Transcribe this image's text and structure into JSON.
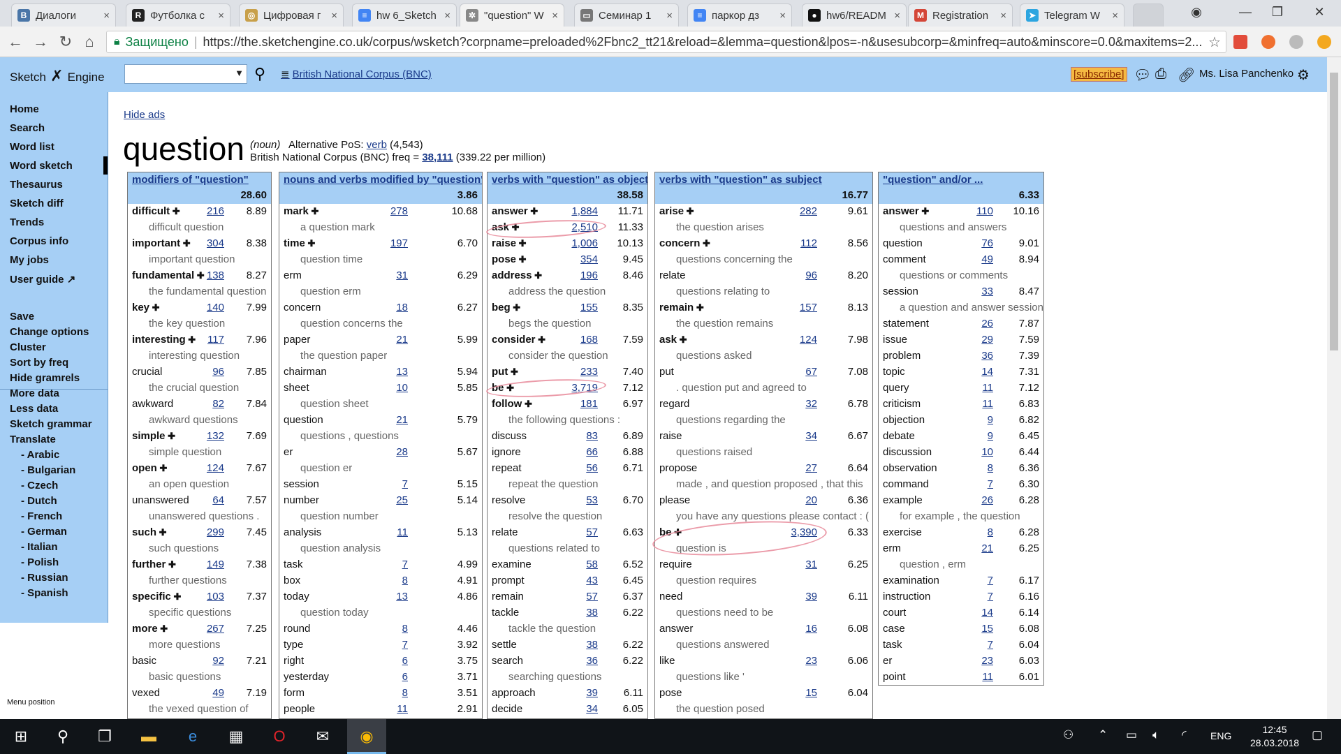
{
  "browser": {
    "tabs": [
      {
        "title": "Диалоги",
        "color": "#4a76a8",
        "glyph": "В"
      },
      {
        "title": "Футболка с",
        "color": "#222",
        "glyph": "R"
      },
      {
        "title": "Цифровая г",
        "color": "#c8a04a",
        "glyph": "◎"
      },
      {
        "title": "hw 6_Sketch",
        "color": "#4285f4",
        "glyph": "≡"
      },
      {
        "title": "\"question\" W",
        "color": "#888",
        "glyph": "✲"
      },
      {
        "title": "Семинар 1",
        "color": "#777",
        "glyph": "▭"
      },
      {
        "title": "паркор дз",
        "color": "#4285f4",
        "glyph": "≡"
      },
      {
        "title": "hw6/READM",
        "color": "#111",
        "glyph": "●"
      },
      {
        "title": "Registration",
        "color": "#d44638",
        "glyph": "M"
      },
      {
        "title": "Telegram W",
        "color": "#2ca5e0",
        "glyph": "➤"
      }
    ],
    "secure_label": "Защищено",
    "url": "https://the.sketchengine.co.uk/corpus/wsketch?corpname=preloaded%2Fbnc2_tt21&reload=&lemma=question&lpos=-n&usesubcorp=&minfreq=auto&minscore=0.0&maxitems=2..."
  },
  "header": {
    "logo_a": "Sketch",
    "logo_b": "Engine",
    "corpus_link": "British National Corpus (BNC)",
    "subscribe": "[subscribe]",
    "user": "Ms. Lisa Panchenko"
  },
  "sidebar": {
    "nav": [
      "Home",
      "Search",
      "Word list",
      "Word sketch",
      "Thesaurus",
      "Sketch diff",
      "Trends",
      "Corpus info",
      "My jobs",
      "User guide"
    ],
    "actions": [
      "Save",
      "Change options",
      "Cluster",
      "Sort by freq",
      "Hide gramrels",
      "More data",
      "Less data",
      "Sketch grammar",
      "Translate"
    ],
    "languages": [
      "- Arabic",
      "- Bulgarian",
      "- Czech",
      "- Dutch",
      "- French",
      "- German",
      "- Italian",
      "- Polish",
      "- Russian",
      "- Spanish"
    ],
    "menu_position": "Menu position"
  },
  "main": {
    "hide_ads": "Hide ads",
    "lemma": "question",
    "pos": "(noun)",
    "alt_pos_label": "Alternative PoS:",
    "alt_pos": "verb",
    "alt_pos_freq": "(4,543)",
    "freq_label": "British National Corpus (BNC) freq =",
    "freq": "38,111",
    "per_million": "(339.22 per million)"
  },
  "columns": [
    {
      "header": "modifiers of \"question\"",
      "score": "28.60",
      "rows": [
        {
          "w": "difficult",
          "plus": true,
          "f": "216",
          "s": "8.89",
          "ex": "difficult question"
        },
        {
          "w": "important",
          "plus": true,
          "f": "304",
          "s": "8.38",
          "ex": "important question"
        },
        {
          "w": "fundamental",
          "plus": true,
          "f": "138",
          "s": "8.27",
          "ex": "the fundamental question"
        },
        {
          "w": "key",
          "plus": true,
          "f": "140",
          "s": "7.99",
          "ex": "the key question"
        },
        {
          "w": "interesting",
          "plus": true,
          "f": "117",
          "s": "7.96",
          "ex": "interesting question"
        },
        {
          "w": "crucial",
          "plus": false,
          "f": "96",
          "s": "7.85",
          "ex": "the crucial question"
        },
        {
          "w": "awkward",
          "plus": false,
          "f": "82",
          "s": "7.84",
          "ex": "awkward questions"
        },
        {
          "w": "simple",
          "plus": true,
          "f": "132",
          "s": "7.69",
          "ex": "simple question"
        },
        {
          "w": "open",
          "plus": true,
          "f": "124",
          "s": "7.67",
          "ex": "an open question"
        },
        {
          "w": "unanswered",
          "plus": false,
          "f": "64",
          "s": "7.57",
          "ex": "unanswered questions ."
        },
        {
          "w": "such",
          "plus": true,
          "f": "299",
          "s": "7.45",
          "ex": "such questions"
        },
        {
          "w": "further",
          "plus": true,
          "f": "149",
          "s": "7.38",
          "ex": "further questions"
        },
        {
          "w": "specific",
          "plus": true,
          "f": "103",
          "s": "7.37",
          "ex": "specific questions"
        },
        {
          "w": "more",
          "plus": true,
          "f": "267",
          "s": "7.25",
          "ex": "more questions"
        },
        {
          "w": "basic",
          "plus": false,
          "f": "92",
          "s": "7.21",
          "ex": "basic questions"
        },
        {
          "w": "vexed",
          "plus": false,
          "f": "49",
          "s": "7.19",
          "ex": "the vexed question of"
        }
      ]
    },
    {
      "header": "nouns and verbs modified by \"question\"",
      "score": "3.86",
      "rows": [
        {
          "w": "mark",
          "plus": true,
          "f": "278",
          "s": "10.68",
          "ex": "a question mark"
        },
        {
          "w": "time",
          "plus": true,
          "f": "197",
          "s": "6.70",
          "ex": "question time"
        },
        {
          "w": "erm",
          "plus": false,
          "f": "31",
          "s": "6.29",
          "ex": "question erm"
        },
        {
          "w": "concern",
          "plus": false,
          "f": "18",
          "s": "6.27",
          "ex": "question concerns the"
        },
        {
          "w": "paper",
          "plus": false,
          "f": "21",
          "s": "5.99",
          "ex": "the question paper"
        },
        {
          "w": "chairman",
          "plus": false,
          "f": "13",
          "s": "5.94",
          "ex": null
        },
        {
          "w": "sheet",
          "plus": false,
          "f": "10",
          "s": "5.85",
          "ex": "question sheet"
        },
        {
          "w": "question",
          "plus": false,
          "f": "21",
          "s": "5.79",
          "ex": "questions , questions"
        },
        {
          "w": "er",
          "plus": false,
          "f": "28",
          "s": "5.67",
          "ex": "question er"
        },
        {
          "w": "session",
          "plus": false,
          "f": "7",
          "s": "5.15",
          "ex": null
        },
        {
          "w": "number",
          "plus": false,
          "f": "25",
          "s": "5.14",
          "ex": "question number"
        },
        {
          "w": "analysis",
          "plus": false,
          "f": "11",
          "s": "5.13",
          "ex": "question analysis"
        },
        {
          "w": "task",
          "plus": false,
          "f": "7",
          "s": "4.99",
          "ex": null
        },
        {
          "w": "box",
          "plus": false,
          "f": "8",
          "s": "4.91",
          "ex": null
        },
        {
          "w": "today",
          "plus": false,
          "f": "13",
          "s": "4.86",
          "ex": "question today"
        },
        {
          "w": "round",
          "plus": false,
          "f": "8",
          "s": "4.46",
          "ex": null
        },
        {
          "w": "type",
          "plus": false,
          "f": "7",
          "s": "3.92",
          "ex": null
        },
        {
          "w": "right",
          "plus": false,
          "f": "6",
          "s": "3.75",
          "ex": null
        },
        {
          "w": "yesterday",
          "plus": false,
          "f": "6",
          "s": "3.71",
          "ex": null
        },
        {
          "w": "form",
          "plus": false,
          "f": "8",
          "s": "3.51",
          "ex": null
        },
        {
          "w": "people",
          "plus": false,
          "f": "11",
          "s": "2.91",
          "ex": null
        }
      ]
    },
    {
      "header": "verbs with \"question\" as object",
      "score": "38.58",
      "rows": [
        {
          "w": "answer",
          "plus": true,
          "f": "1,884",
          "s": "11.71",
          "ex": null
        },
        {
          "w": "ask",
          "plus": true,
          "f": "2,510",
          "s": "11.33",
          "ex": null
        },
        {
          "w": "raise",
          "plus": true,
          "f": "1,006",
          "s": "10.13",
          "ex": null
        },
        {
          "w": "pose",
          "plus": true,
          "f": "354",
          "s": "9.45",
          "ex": null
        },
        {
          "w": "address",
          "plus": true,
          "f": "196",
          "s": "8.46",
          "ex": "address the question"
        },
        {
          "w": "beg",
          "plus": true,
          "f": "155",
          "s": "8.35",
          "ex": "begs the question"
        },
        {
          "w": "consider",
          "plus": true,
          "f": "168",
          "s": "7.59",
          "ex": "consider the question"
        },
        {
          "w": "put",
          "plus": true,
          "f": "233",
          "s": "7.40",
          "ex": null
        },
        {
          "w": "be",
          "plus": true,
          "f": "3,719",
          "s": "7.12",
          "ex": null
        },
        {
          "w": "follow",
          "plus": true,
          "f": "181",
          "s": "6.97",
          "ex": "the following questions :"
        },
        {
          "w": "discuss",
          "plus": false,
          "f": "83",
          "s": "6.89",
          "ex": null
        },
        {
          "w": "ignore",
          "plus": false,
          "f": "66",
          "s": "6.88",
          "ex": null
        },
        {
          "w": "repeat",
          "plus": false,
          "f": "56",
          "s": "6.71",
          "ex": "repeat the question"
        },
        {
          "w": "resolve",
          "plus": false,
          "f": "53",
          "s": "6.70",
          "ex": "resolve the question"
        },
        {
          "w": "relate",
          "plus": false,
          "f": "57",
          "s": "6.63",
          "ex": "questions related to"
        },
        {
          "w": "examine",
          "plus": false,
          "f": "58",
          "s": "6.52",
          "ex": null
        },
        {
          "w": "prompt",
          "plus": false,
          "f": "43",
          "s": "6.45",
          "ex": null
        },
        {
          "w": "remain",
          "plus": false,
          "f": "57",
          "s": "6.37",
          "ex": null
        },
        {
          "w": "tackle",
          "plus": false,
          "f": "38",
          "s": "6.22",
          "ex": "tackle the question"
        },
        {
          "w": "settle",
          "plus": false,
          "f": "38",
          "s": "6.22",
          "ex": null
        },
        {
          "w": "search",
          "plus": false,
          "f": "36",
          "s": "6.22",
          "ex": "searching questions"
        },
        {
          "w": "approach",
          "plus": false,
          "f": "39",
          "s": "6.11",
          "ex": null
        },
        {
          "w": "decide",
          "plus": false,
          "f": "34",
          "s": "6.05",
          "ex": null
        }
      ]
    },
    {
      "header": "verbs with \"question\" as subject",
      "score": "16.77",
      "rows": [
        {
          "w": "arise",
          "plus": true,
          "f": "282",
          "s": "9.61",
          "ex": "the question arises"
        },
        {
          "w": "concern",
          "plus": true,
          "f": "112",
          "s": "8.56",
          "ex": "questions concerning the"
        },
        {
          "w": "relate",
          "plus": false,
          "f": "96",
          "s": "8.20",
          "ex": "questions relating to"
        },
        {
          "w": "remain",
          "plus": true,
          "f": "157",
          "s": "8.13",
          "ex": "the question remains"
        },
        {
          "w": "ask",
          "plus": true,
          "f": "124",
          "s": "7.98",
          "ex": "questions asked"
        },
        {
          "w": "put",
          "plus": false,
          "f": "67",
          "s": "7.08",
          "ex": ". question put and agreed to"
        },
        {
          "w": "regard",
          "plus": false,
          "f": "32",
          "s": "6.78",
          "ex": "questions regarding the"
        },
        {
          "w": "raise",
          "plus": false,
          "f": "34",
          "s": "6.67",
          "ex": "questions raised"
        },
        {
          "w": "propose",
          "plus": false,
          "f": "27",
          "s": "6.64",
          "ex": "made , and question proposed , that this"
        },
        {
          "w": "please",
          "plus": false,
          "f": "20",
          "s": "6.36",
          "ex": "you have any questions please contact : ("
        },
        {
          "w": "be",
          "plus": true,
          "f": "3,390",
          "s": "6.33",
          "ex": "question is"
        },
        {
          "w": "require",
          "plus": false,
          "f": "31",
          "s": "6.25",
          "ex": "question requires"
        },
        {
          "w": "need",
          "plus": false,
          "f": "39",
          "s": "6.11",
          "ex": "questions need to be"
        },
        {
          "w": "answer",
          "plus": false,
          "f": "16",
          "s": "6.08",
          "ex": "questions answered"
        },
        {
          "w": "like",
          "plus": false,
          "f": "23",
          "s": "6.06",
          "ex": "questions like '"
        },
        {
          "w": "pose",
          "plus": false,
          "f": "15",
          "s": "6.04",
          "ex": "the question posed"
        }
      ]
    },
    {
      "header": "\"question\" and/or ...",
      "score": "6.33",
      "rows": [
        {
          "w": "answer",
          "plus": true,
          "f": "110",
          "s": "10.16",
          "ex": "questions and answers"
        },
        {
          "w": "question",
          "plus": false,
          "f": "76",
          "s": "9.01",
          "ex": null
        },
        {
          "w": "comment",
          "plus": false,
          "f": "49",
          "s": "8.94",
          "ex": "questions or comments"
        },
        {
          "w": "session",
          "plus": false,
          "f": "33",
          "s": "8.47",
          "ex": "a question and answer session"
        },
        {
          "w": "statement",
          "plus": false,
          "f": "26",
          "s": "7.87",
          "ex": null
        },
        {
          "w": "issue",
          "plus": false,
          "f": "29",
          "s": "7.59",
          "ex": null
        },
        {
          "w": "problem",
          "plus": false,
          "f": "36",
          "s": "7.39",
          "ex": null
        },
        {
          "w": "topic",
          "plus": false,
          "f": "14",
          "s": "7.31",
          "ex": null
        },
        {
          "w": "query",
          "plus": false,
          "f": "11",
          "s": "7.12",
          "ex": null
        },
        {
          "w": "criticism",
          "plus": false,
          "f": "11",
          "s": "6.83",
          "ex": null
        },
        {
          "w": "objection",
          "plus": false,
          "f": "9",
          "s": "6.82",
          "ex": null
        },
        {
          "w": "debate",
          "plus": false,
          "f": "9",
          "s": "6.45",
          "ex": null
        },
        {
          "w": "discussion",
          "plus": false,
          "f": "10",
          "s": "6.44",
          "ex": null
        },
        {
          "w": "observation",
          "plus": false,
          "f": "8",
          "s": "6.36",
          "ex": null
        },
        {
          "w": "command",
          "plus": false,
          "f": "7",
          "s": "6.30",
          "ex": null
        },
        {
          "w": "example",
          "plus": false,
          "f": "26",
          "s": "6.28",
          "ex": "for example , the question"
        },
        {
          "w": "exercise",
          "plus": false,
          "f": "8",
          "s": "6.28",
          "ex": null
        },
        {
          "w": "erm",
          "plus": false,
          "f": "21",
          "s": "6.25",
          "ex": "question , erm"
        },
        {
          "w": "examination",
          "plus": false,
          "f": "7",
          "s": "6.17",
          "ex": null
        },
        {
          "w": "instruction",
          "plus": false,
          "f": "7",
          "s": "6.16",
          "ex": null
        },
        {
          "w": "court",
          "plus": false,
          "f": "14",
          "s": "6.14",
          "ex": null
        },
        {
          "w": "case",
          "plus": false,
          "f": "15",
          "s": "6.08",
          "ex": null
        },
        {
          "w": "task",
          "plus": false,
          "f": "7",
          "s": "6.04",
          "ex": null
        },
        {
          "w": "er",
          "plus": false,
          "f": "23",
          "s": "6.03",
          "ex": null
        },
        {
          "w": "point",
          "plus": false,
          "f": "11",
          "s": "6.01",
          "ex": null
        }
      ]
    }
  ],
  "taskbar": {
    "lang": "ENG",
    "time": "12:45",
    "date": "28.03.2018"
  }
}
